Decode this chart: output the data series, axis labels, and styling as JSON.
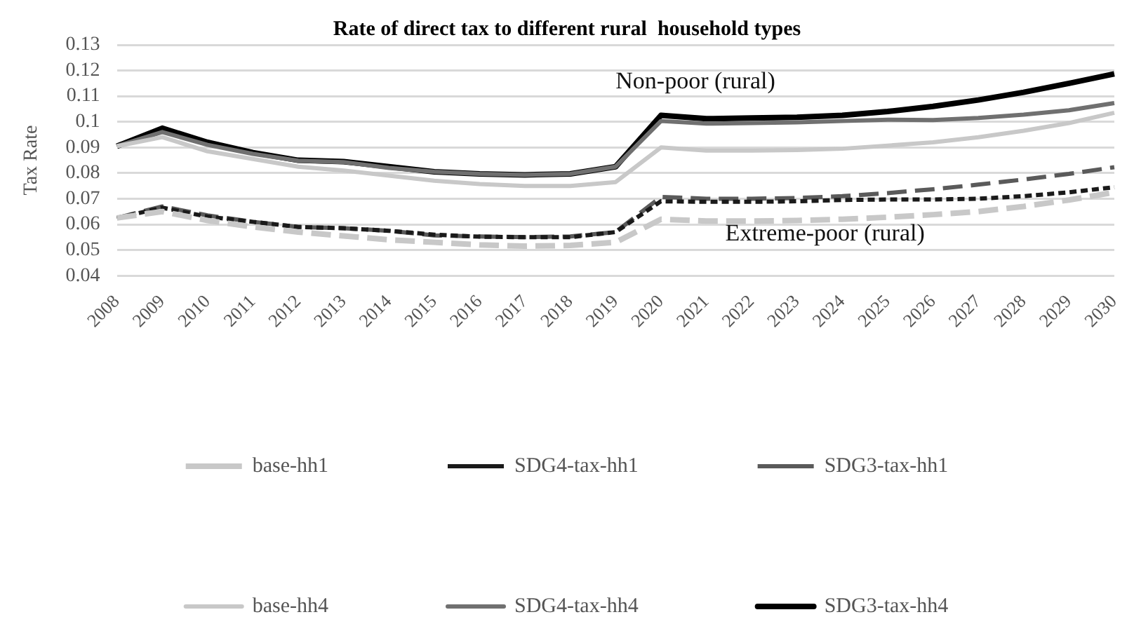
{
  "chart_data": {
    "type": "line",
    "title": "Rate of direct tax to different rural  household types",
    "ylabel": "Tax Rate",
    "categories": [
      "2008",
      "2009",
      "2010",
      "2011",
      "2012",
      "2013",
      "2014",
      "2015",
      "2016",
      "2017",
      "2018",
      "2019",
      "2020",
      "2021",
      "2022",
      "2023",
      "2024",
      "2025",
      "2026",
      "2027",
      "2028",
      "2029",
      "2030"
    ],
    "series": [
      {
        "name": "base-hh1",
        "color": "#c8c8c8",
        "line_style": "dashed",
        "values": [
          0.0625,
          0.065,
          0.0615,
          0.059,
          0.057,
          0.0555,
          0.054,
          0.053,
          0.052,
          0.0515,
          0.0518,
          0.053,
          0.062,
          0.0613,
          0.0613,
          0.0615,
          0.062,
          0.0628,
          0.0638,
          0.065,
          0.067,
          0.0695,
          0.0725
        ]
      },
      {
        "name": "SDG4-tax-hh1",
        "color": "#1a1a1a",
        "line_style": "dotted",
        "values": [
          0.0625,
          0.0665,
          0.063,
          0.061,
          0.059,
          0.0585,
          0.0575,
          0.056,
          0.0552,
          0.055,
          0.055,
          0.057,
          0.069,
          0.0688,
          0.0688,
          0.069,
          0.0695,
          0.0697,
          0.0697,
          0.07,
          0.071,
          0.0725,
          0.0745
        ]
      },
      {
        "name": "SDG3-tax-hh1",
        "color": "#5a5a5a",
        "line_style": "dashed",
        "values": [
          0.0625,
          0.067,
          0.0635,
          0.061,
          0.059,
          0.0585,
          0.0575,
          0.0557,
          0.0553,
          0.055,
          0.0553,
          0.057,
          0.0707,
          0.07,
          0.07,
          0.0703,
          0.071,
          0.0722,
          0.0737,
          0.0755,
          0.0775,
          0.0797,
          0.0823
        ]
      },
      {
        "name": "base-hh4",
        "color": "#c8c8c8",
        "line_style": "solid",
        "values": [
          0.0905,
          0.094,
          0.0885,
          0.0855,
          0.0825,
          0.081,
          0.079,
          0.077,
          0.0757,
          0.075,
          0.075,
          0.0765,
          0.09,
          0.0888,
          0.0888,
          0.089,
          0.0895,
          0.0907,
          0.092,
          0.094,
          0.0965,
          0.0995,
          0.1035
        ]
      },
      {
        "name": "SDG4-tax-hh4",
        "color": "#707070",
        "line_style": "solid",
        "values": [
          0.0905,
          0.096,
          0.091,
          0.0875,
          0.0848,
          0.0843,
          0.082,
          0.0805,
          0.0797,
          0.0793,
          0.0797,
          0.0825,
          0.1003,
          0.0993,
          0.0995,
          0.0998,
          0.1003,
          0.1008,
          0.1007,
          0.1015,
          0.1028,
          0.1045,
          0.1073
        ]
      },
      {
        "name": "SDG3-tax-hh4",
        "color": "#000000",
        "line_style": "solid",
        "values": [
          0.0905,
          0.0975,
          0.092,
          0.088,
          0.085,
          0.0845,
          0.0825,
          0.0805,
          0.0797,
          0.0793,
          0.0797,
          0.0825,
          0.1025,
          0.1012,
          0.1015,
          0.1018,
          0.1025,
          0.104,
          0.106,
          0.1085,
          0.1115,
          0.115,
          0.1187
        ]
      }
    ],
    "ylim": [
      0.04,
      0.13
    ],
    "yticks": [
      0.04,
      0.05,
      0.06,
      0.07,
      0.08,
      0.09,
      0.1,
      0.11,
      0.12,
      0.13
    ],
    "grid": "y",
    "legend": "bottom",
    "marker": "none",
    "annotations": [
      "Non-poor (rural)",
      "Extreme-poor (rural)"
    ]
  }
}
